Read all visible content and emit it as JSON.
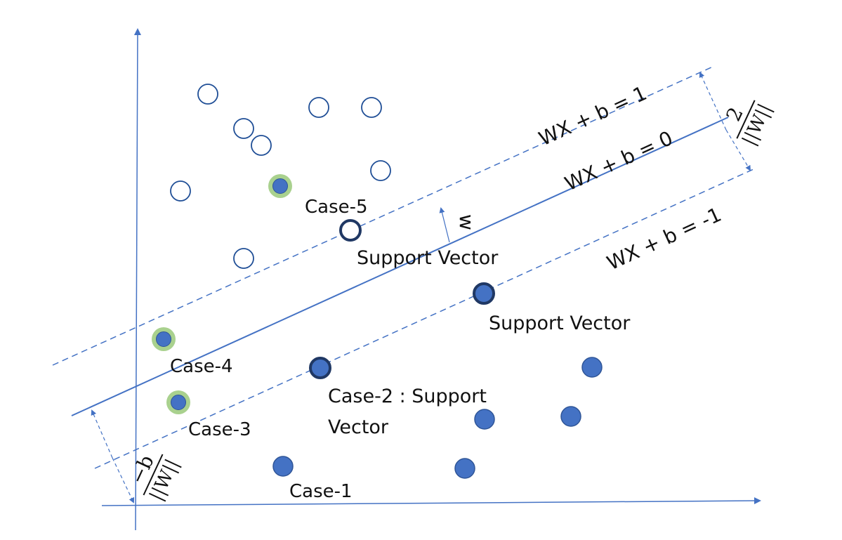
{
  "colors": {
    "axis": "#4472C4",
    "line": "#4472C4",
    "open_point": "#1F4E96",
    "filled_point": "#4472C4",
    "filled_stroke": "#2F5597",
    "support_stroke": "#203864",
    "highlight_ring": "#A9D18E"
  },
  "labels": {
    "eq_pos": "WX + b = 1",
    "eq_zero": "WX + b = 0",
    "eq_neg": "WX + b = -1",
    "w_vector": "w",
    "margin_num": "2",
    "margin_den": "||W||",
    "offset_num": "−b",
    "offset_den": "||W||",
    "case1": "Case-1",
    "case2_line1": "Case-2 : Support",
    "case2_line2": "Vector",
    "case3": "Case-3",
    "case4": "Case-4",
    "case5": "Case-5",
    "sv_upper": "Support Vector",
    "sv_lower": "Support Vector"
  },
  "icons": {
    "open_point": "hollow-circle-icon",
    "filled_point": "filled-circle-icon"
  }
}
